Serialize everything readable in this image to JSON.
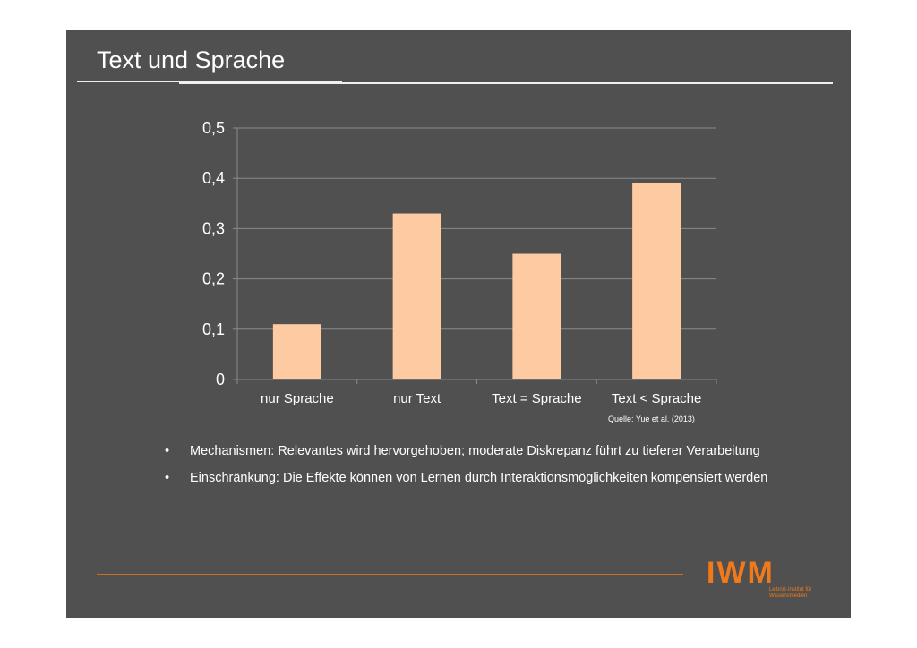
{
  "slide": {
    "title": "Text und Sprache",
    "source": "Quelle: Yue et al. (2013)",
    "bullets": [
      "Mechanismen: Relevantes wird hervorgehoben; moderate Diskrepanz führt zu tieferer Verarbeitung",
      "Einschränkung: Die Effekte können von Lernen durch Interaktionsmöglichkeiten kompensiert werden"
    ],
    "bullet_symbol": "•",
    "logo": {
      "mark": "IWM",
      "subtitle": "Leibniz-Institut für Wissensmedien"
    }
  },
  "colors": {
    "slide_bg": "#505050",
    "bar": "#fdcaa2",
    "grid": "#8a8a8a",
    "accent": "#f07a1a"
  },
  "chart_data": {
    "type": "bar",
    "categories": [
      "nur Sprache",
      "nur Text",
      "Text = Sprache",
      "Text < Sprache"
    ],
    "values": [
      0.11,
      0.33,
      0.25,
      0.39
    ],
    "ylim": [
      0,
      0.5
    ],
    "yticks": [
      0,
      0.1,
      0.2,
      0.3,
      0.4,
      0.5
    ],
    "ytick_labels": [
      "0",
      "0,1",
      "0,2",
      "0,3",
      "0,4",
      "0,5"
    ],
    "grid": true,
    "legend": "none"
  }
}
